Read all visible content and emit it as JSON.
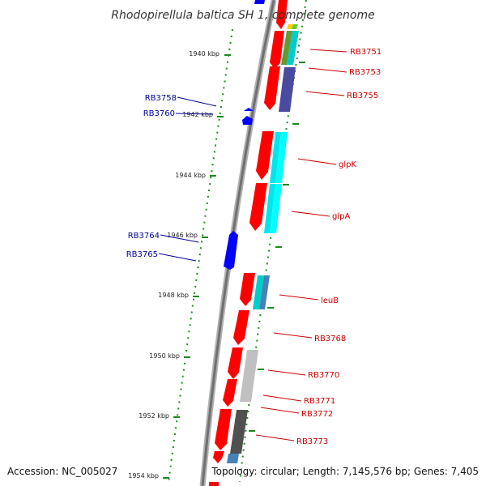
{
  "title": "Rhodopirellula baltica SH 1, complete genome",
  "footer": {
    "accession": "Accession: NC_005027",
    "topology": "Topology: circular; Length: 7,145,576 bp; Genes: 7,405"
  },
  "colors": {
    "forward_gene": "#ff0000",
    "reverse_gene": "#0000ff",
    "backbone": "#808080",
    "tick": "#1a8a1a",
    "forward_label": "#cc0000",
    "reverse_label": "#000099"
  },
  "ticks": [
    {
      "label": "1940 kbp"
    },
    {
      "label": "1942 kbp"
    },
    {
      "label": "1944 kbp"
    },
    {
      "label": "1946 kbp"
    },
    {
      "label": "1948 kbp"
    },
    {
      "label": "1950 kbp"
    },
    {
      "label": "1952 kbp"
    },
    {
      "label": "1954 kbp"
    }
  ],
  "forward_genes": [
    {
      "label": "RB3751"
    },
    {
      "label": "RB3753"
    },
    {
      "label": "RB3755"
    },
    {
      "label": "glpK"
    },
    {
      "label": "glpA"
    },
    {
      "label": "leuB"
    },
    {
      "label": "RB3768"
    },
    {
      "label": "RB3770"
    },
    {
      "label": "RB3771"
    },
    {
      "label": "RB3772"
    },
    {
      "label": "RB3773"
    }
  ],
  "reverse_genes": [
    {
      "label": "RB3758"
    },
    {
      "label": "RB3760"
    },
    {
      "label": "RB3764"
    },
    {
      "label": "RB3765"
    }
  ]
}
